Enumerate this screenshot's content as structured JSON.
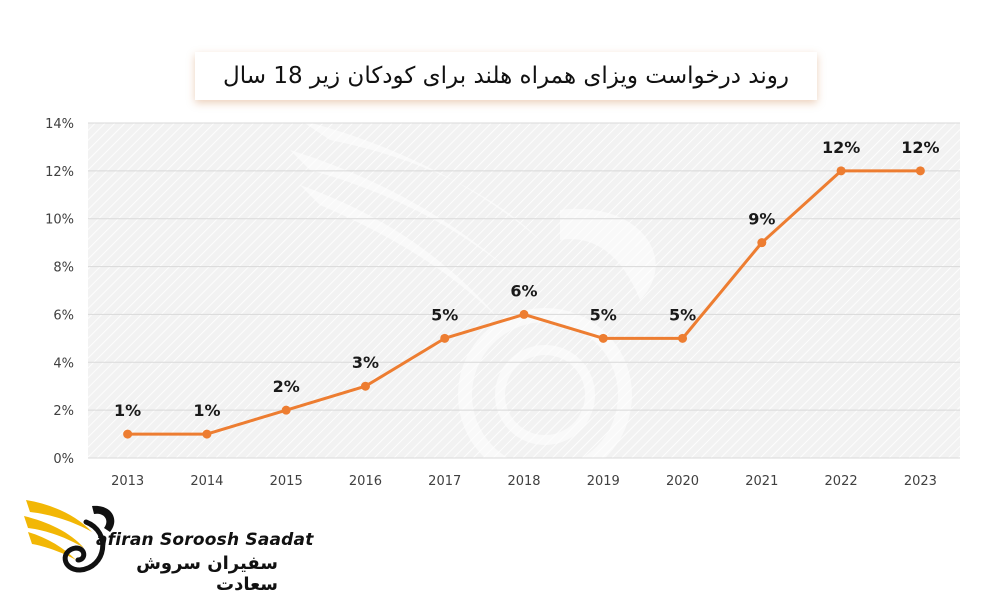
{
  "colors": {
    "line": "#ED7D31",
    "plot_bg": "#F2F2F2",
    "hatch": "#FFFFFF",
    "axis_text": "#404040",
    "label_text": "#1A1A1A",
    "logo_gold": "#F2B705"
  },
  "logo": {
    "name_en": "afiran Soroosh Saadat",
    "name_fa": "سفیران سروش سعادت",
    "icon": "swan-icon"
  },
  "chart_data": {
    "type": "line",
    "title": "روند درخواست ویزای همراه هلند برای کودکان زیر 18 سال",
    "xlabel": "",
    "ylabel": "",
    "categories": [
      "2013",
      "2014",
      "2015",
      "2016",
      "2017",
      "2018",
      "2019",
      "2020",
      "2021",
      "2022",
      "2023"
    ],
    "series": [
      {
        "values": [
          1,
          1,
          2,
          3,
          5,
          6,
          5,
          5,
          9,
          12,
          12
        ]
      }
    ],
    "data_labels": [
      "1%",
      "1%",
      "2%",
      "3%",
      "5%",
      "6%",
      "5%",
      "5%",
      "9%",
      "12%",
      "12%"
    ],
    "ylim": [
      0,
      14
    ],
    "yticks": [
      0,
      2,
      4,
      6,
      8,
      10,
      12,
      14
    ],
    "ytick_labels": [
      "0%",
      "2%",
      "4%",
      "6%",
      "8%",
      "10%",
      "12%",
      "14%"
    ],
    "grid": "horizontal",
    "legend": "none"
  }
}
